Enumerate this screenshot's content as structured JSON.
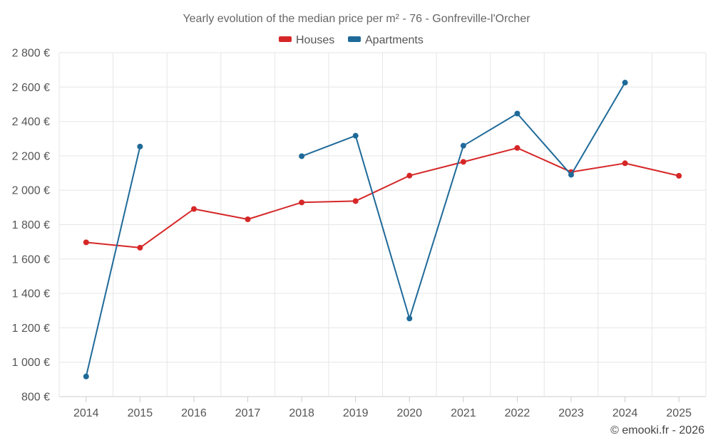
{
  "chart_data": {
    "type": "line",
    "title": "Yearly evolution of the median price per m² - 76 - Gonfreville-l'Orcher",
    "categories": [
      "2014",
      "2015",
      "2016",
      "2017",
      "2018",
      "2019",
      "2020",
      "2021",
      "2022",
      "2023",
      "2024",
      "2025"
    ],
    "series": [
      {
        "name": "Houses",
        "color": "#d62728",
        "values": [
          1697,
          1666,
          1891,
          1831,
          1929,
          1937,
          2085,
          2165,
          2246,
          2106,
          2157,
          2084
        ]
      },
      {
        "name": "Apartments",
        "color": "#1f6a99",
        "values": [
          917,
          2254,
          null,
          null,
          2198,
          2317,
          1254,
          2259,
          2446,
          2090,
          2626,
          null
        ]
      }
    ],
    "ylim": [
      800,
      2800
    ],
    "yticks": [
      800,
      1000,
      1200,
      1400,
      1600,
      1800,
      2000,
      2200,
      2400,
      2600,
      2800
    ],
    "ytick_labels": [
      "800 €",
      "1 000 €",
      "1 200 €",
      "1 400 €",
      "1 600 €",
      "1 800 €",
      "2 000 €",
      "2 200 €",
      "2 400 €",
      "2 600 €",
      "2 800 €"
    ],
    "grid": true,
    "legend_position": "top-center",
    "credit": "© emooki.fr - 2026"
  }
}
